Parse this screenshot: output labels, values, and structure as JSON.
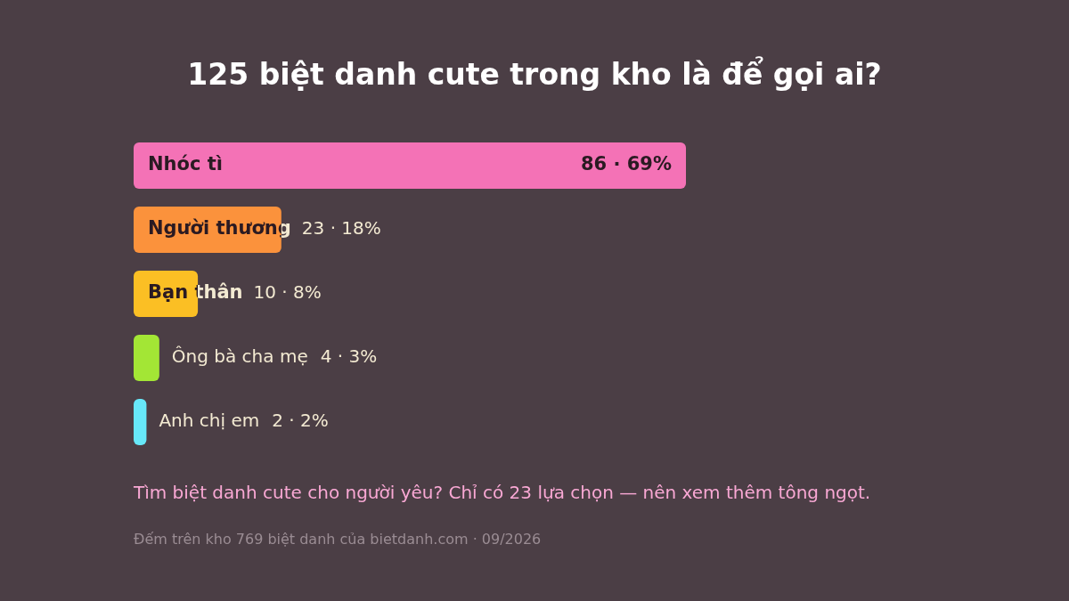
{
  "chart_data": {
    "type": "bar",
    "orientation": "horizontal",
    "title": "125 biệt danh cute trong kho là để gọi ai?",
    "categories": [
      "Nhóc tì",
      "Người thương",
      "Bạn thân",
      "Ông bà cha mẹ",
      "Anh chị em"
    ],
    "values": [
      86,
      23,
      10,
      4,
      2
    ],
    "value_labels": [
      "86 · 69%",
      "23 · 18%",
      "10 · 8%",
      "4 · 3%",
      "2 · 2%"
    ],
    "colors": [
      "#f472b6",
      "#fb923c",
      "#fbbf24",
      "#a3e635",
      "#67e8f9"
    ],
    "xlim": [
      0,
      86
    ],
    "tick_labels": false,
    "grid": false,
    "data_labels": true,
    "annotations": [
      "Tìm biệt danh cute cho người yêu? Chỉ có 23 lựa chọn — nên xem thêm tông ngọt.",
      "Đếm trên kho 769 biệt danh của bietdanh.com · 09/2026"
    ]
  }
}
